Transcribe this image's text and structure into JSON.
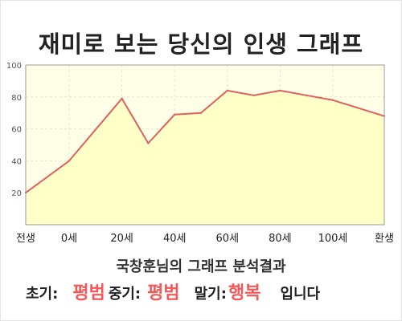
{
  "title": "재미로 보는 당신의 인생 그래프",
  "chart_data": {
    "type": "area",
    "x": [
      -1,
      0,
      20,
      30,
      40,
      50,
      60,
      70,
      80,
      90,
      100,
      120
    ],
    "values": [
      20,
      40,
      79,
      51,
      69,
      70,
      84,
      81,
      84,
      81,
      78,
      68
    ],
    "xticks": [
      {
        "x": -1,
        "label": "전생"
      },
      {
        "x": 0,
        "label": "0세"
      },
      {
        "x": 20,
        "label": "20세"
      },
      {
        "x": 40,
        "label": "40세"
      },
      {
        "x": 60,
        "label": "60세"
      },
      {
        "x": 80,
        "label": "80세"
      },
      {
        "x": 100,
        "label": "100세"
      },
      {
        "x": 120,
        "label": "환생"
      }
    ],
    "yticks": [
      20,
      40,
      60,
      80,
      100
    ],
    "ylim": [
      0,
      100
    ],
    "grid": true,
    "colors": {
      "fill": "#ffffc8",
      "line": "#e06060",
      "plot_bg": "#ffffe8",
      "grid": "#e6e6c4"
    }
  },
  "summary": {
    "subtitle": "국창훈님의 그래프 분석결과",
    "early_label": "초기:",
    "early_value": "평범",
    "middle_label": "중기:",
    "middle_value": "평범",
    "late_label": "말기:",
    "late_value": "행복",
    "ending": "입니다"
  }
}
